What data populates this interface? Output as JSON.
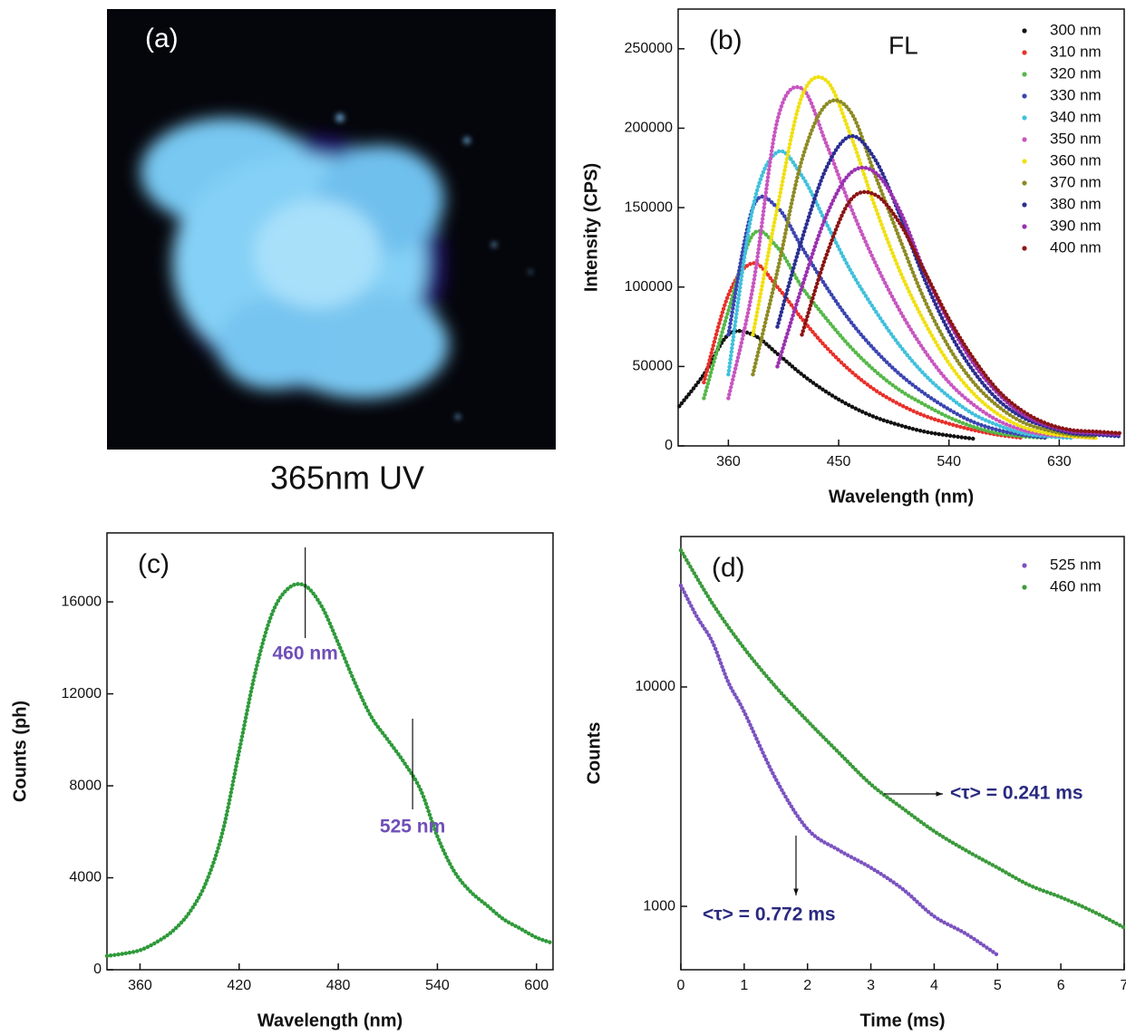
{
  "chart_data": [
    {
      "type": "image",
      "label": "(a)",
      "caption": "365nm UV"
    },
    {
      "type": "scatter",
      "label": "(b)",
      "annotation": "FL",
      "x_label": "Wavelength (nm)",
      "y_label": "Intensity (CPS)",
      "x": [
        320,
        340,
        360,
        380,
        400,
        420,
        440,
        460,
        480,
        500,
        520,
        540,
        560,
        580,
        600,
        620,
        640,
        660,
        680
      ],
      "series": [
        {
          "name": "300 nm",
          "color": "#111111",
          "values": [
            25000,
            45000,
            70000,
            70000,
            58000,
            45000,
            34000,
            25000,
            18000,
            13000,
            9000,
            6500,
            4500,
            null,
            null,
            null,
            null,
            null,
            null
          ]
        },
        {
          "name": "310 nm",
          "color": "#e8302a",
          "values": [
            null,
            40000,
            95000,
            115000,
            100000,
            80000,
            62000,
            47000,
            35000,
            26000,
            19000,
            14000,
            10000,
            7000,
            5000,
            null,
            null,
            null,
            null
          ]
        },
        {
          "name": "320 nm",
          "color": "#55b848",
          "values": [
            null,
            30000,
            85000,
            133000,
            125000,
            100000,
            80000,
            62000,
            47000,
            35000,
            26000,
            18000,
            12000,
            8000,
            6000,
            5000,
            null,
            null,
            null
          ]
        },
        {
          "name": "330 nm",
          "color": "#3a44b0",
          "values": [
            null,
            null,
            70000,
            150000,
            150000,
            125000,
            100000,
            78000,
            60000,
            45000,
            33000,
            23000,
            15000,
            10000,
            7000,
            5000,
            null,
            null,
            null
          ]
        },
        {
          "name": "340 nm",
          "color": "#40c0dc",
          "values": [
            null,
            null,
            45000,
            150000,
            185000,
            170000,
            140000,
            110000,
            85000,
            63000,
            45000,
            31000,
            20000,
            13000,
            8000,
            6000,
            5000,
            null,
            null
          ]
        },
        {
          "name": "350 nm",
          "color": "#c855c0",
          "values": [
            null,
            null,
            30000,
            100000,
            205000,
            225000,
            190000,
            150000,
            115000,
            85000,
            60000,
            40000,
            26000,
            16000,
            10000,
            7000,
            6000,
            5000,
            null
          ]
        },
        {
          "name": "360 nm",
          "color": "#f0e010",
          "values": [
            null,
            null,
            null,
            70000,
            150000,
            220000,
            230000,
            195000,
            150000,
            110000,
            78000,
            52000,
            33000,
            20000,
            12000,
            8000,
            6000,
            5000,
            null
          ]
        },
        {
          "name": "370 nm",
          "color": "#8c8a22",
          "values": [
            null,
            null,
            null,
            45000,
            110000,
            180000,
            215000,
            210000,
            170000,
            130000,
            92000,
            62000,
            40000,
            25000,
            15000,
            10000,
            7000,
            6000,
            null
          ]
        },
        {
          "name": "380 nm",
          "color": "#2a2e90",
          "values": [
            null,
            null,
            null,
            null,
            75000,
            130000,
            175000,
            195000,
            180000,
            145000,
            105000,
            72000,
            47000,
            29000,
            18000,
            12000,
            8000,
            7000,
            6000
          ]
        },
        {
          "name": "390 nm",
          "color": "#9a30b0",
          "values": [
            null,
            null,
            null,
            null,
            50000,
            100000,
            145000,
            172000,
            172000,
            148000,
            110000,
            78000,
            52000,
            33000,
            20000,
            13000,
            9000,
            8000,
            7000
          ]
        },
        {
          "name": "400 nm",
          "color": "#8b1414",
          "values": [
            null,
            null,
            null,
            null,
            null,
            70000,
            120000,
            155000,
            158000,
            140000,
            110000,
            80000,
            55000,
            35000,
            22000,
            14000,
            10000,
            9000,
            8000
          ]
        }
      ],
      "xlim": [
        319,
        683
      ],
      "ylim": [
        0,
        275000
      ],
      "xticks": [
        360,
        450,
        540,
        630
      ],
      "yticks": [
        0,
        50000,
        100000,
        150000,
        200000,
        250000
      ],
      "legend": "upper right"
    },
    {
      "type": "scatter",
      "label": "(c)",
      "x_label": "Wavelength (nm)",
      "y_label": "Counts (ph)",
      "x": [
        340,
        350,
        360,
        370,
        380,
        390,
        400,
        410,
        420,
        430,
        440,
        450,
        460,
        470,
        480,
        490,
        500,
        510,
        520,
        530,
        540,
        550,
        560,
        570,
        580,
        590,
        600,
        610
      ],
      "series": [
        {
          "color": "#2e9a3a",
          "values": [
            600,
            700,
            850,
            1200,
            1700,
            2500,
            3800,
            6000,
            9500,
            13000,
            15500,
            16600,
            16700,
            15800,
            14200,
            12500,
            11000,
            10000,
            9000,
            7800,
            5800,
            4300,
            3400,
            2800,
            2200,
            1800,
            1400,
            1150
          ]
        }
      ],
      "annotations": [
        {
          "text": "460 nm",
          "x": 460
        },
        {
          "text": "525 nm",
          "x": 525
        }
      ],
      "xlim": [
        340,
        610
      ],
      "ylim": [
        0,
        19000
      ],
      "xticks": [
        360,
        420,
        480,
        540,
        600
      ],
      "yticks": [
        0,
        4000,
        8000,
        12000,
        16000
      ]
    },
    {
      "type": "scatter",
      "label": "(d)",
      "x_label": "Time (ms)",
      "y_label": "Counts",
      "log_y": true,
      "series": [
        {
          "name": "525 nm",
          "color": "#7b52c0",
          "x": [
            0,
            0.25,
            0.5,
            0.75,
            1,
            1.5,
            2,
            2.5,
            3,
            3.5,
            4,
            4.5,
            5
          ],
          "values": [
            29000,
            21000,
            16000,
            10500,
            7700,
            3800,
            2250,
            1800,
            1500,
            1200,
            900,
            750,
            600
          ]
        },
        {
          "name": "460 nm",
          "color": "#3a9a3a",
          "x": [
            0,
            0.5,
            1,
            1.5,
            2,
            2.5,
            3,
            3.5,
            4,
            4.5,
            5,
            5.5,
            6,
            6.5,
            7
          ],
          "values": [
            42000,
            24000,
            15000,
            10000,
            7000,
            5000,
            3600,
            2800,
            2200,
            1800,
            1500,
            1250,
            1100,
            950,
            800
          ]
        }
      ],
      "annotations": [
        {
          "text": "<τ> = 0.241 ms"
        },
        {
          "text": "<τ> = 0.772 ms"
        }
      ],
      "xlim": [
        0,
        7
      ],
      "ylim": [
        514,
        48500
      ],
      "xticks": [
        0,
        1,
        2,
        3,
        4,
        5,
        6,
        7
      ],
      "yticks": [
        1000,
        10000
      ],
      "legend": "upper right"
    }
  ]
}
